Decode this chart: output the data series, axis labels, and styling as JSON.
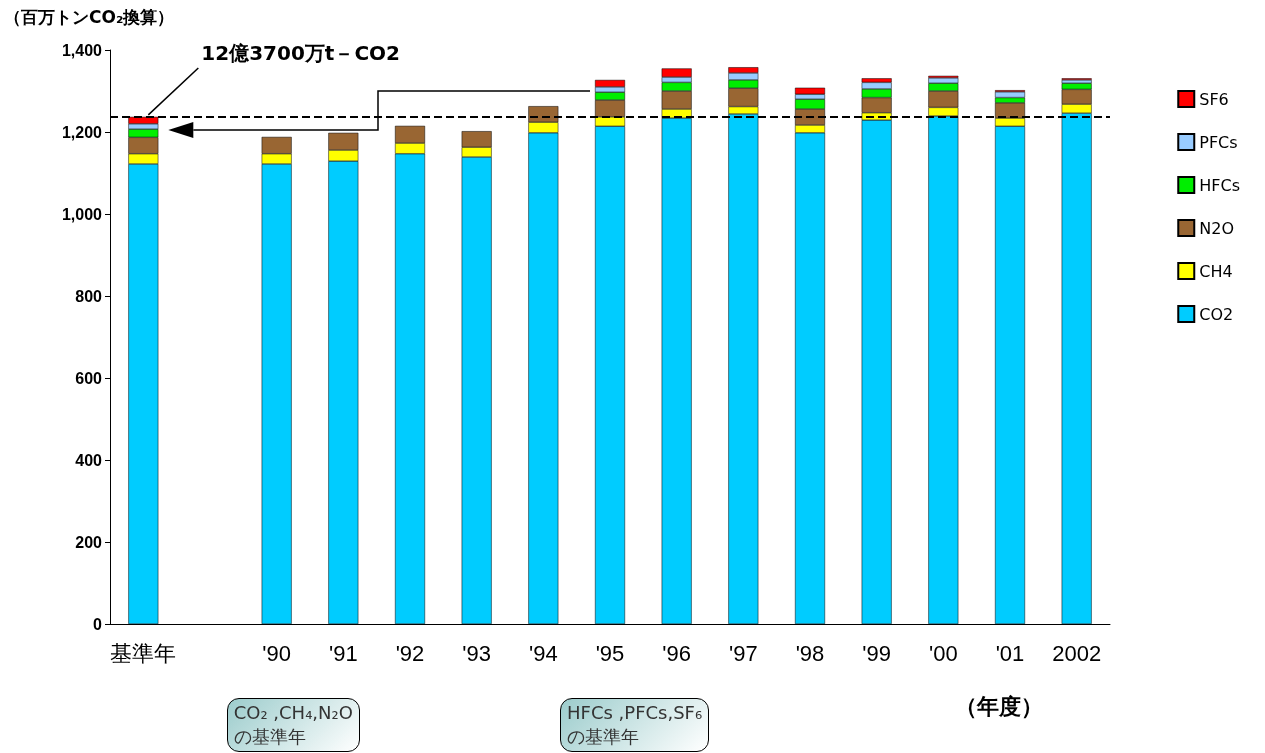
{
  "chart_data": {
    "type": "bar",
    "stacked": true,
    "ylabel": "（百万トンCO₂換算）",
    "xlabel": "（年度）",
    "categories": [
      "基準年",
      null,
      "'90",
      "'91",
      "'92",
      "'93",
      "'94",
      "'95",
      "'96",
      "'97",
      "'98",
      "'99",
      "'00",
      "'01",
      "2002"
    ],
    "series": [
      {
        "name": "CO2",
        "color": "#00ccff",
        "values": [
          1122,
          null,
          1122,
          1129,
          1147,
          1139,
          1198,
          1214,
          1234,
          1244,
          1198,
          1229,
          1239,
          1214,
          1246
        ]
      },
      {
        "name": "CH4",
        "color": "#ffff00",
        "values": [
          25,
          null,
          25,
          27,
          26,
          24,
          26,
          23,
          22,
          18,
          19,
          18,
          21,
          20,
          22
        ]
      },
      {
        "name": "N2O",
        "color": "#996633",
        "values": [
          40,
          null,
          41,
          42,
          42,
          39,
          39,
          41,
          44,
          45,
          39,
          37,
          40,
          37,
          36
        ]
      },
      {
        "name": "HFCs",
        "color": "#00ee00",
        "values": [
          20,
          null,
          null,
          null,
          null,
          null,
          null,
          19,
          21,
          20,
          24,
          21,
          19,
          13,
          15
        ]
      },
      {
        "name": "PFCs",
        "color": "#99ccff",
        "values": [
          13,
          null,
          null,
          null,
          null,
          null,
          null,
          13,
          13,
          17,
          12,
          16,
          13,
          14,
          8
        ]
      },
      {
        "name": "SF6",
        "color": "#ff0000",
        "values": [
          17,
          null,
          null,
          null,
          null,
          null,
          null,
          17,
          21,
          14,
          16,
          10,
          5,
          4,
          4
        ]
      }
    ],
    "ylim": [
      0,
      1400
    ],
    "yticks": [
      0,
      200,
      400,
      600,
      800,
      {
        "value": 1000,
        "label": "1,000"
      },
      {
        "value": 1200,
        "label": "1,200"
      },
      {
        "value": 1400,
        "label": "1,400"
      }
    ],
    "grid": false,
    "legend": "right",
    "ref_lines": [
      {
        "axis": "y",
        "value": 1237,
        "line_style": "dashed",
        "color": "#000000"
      }
    ],
    "annotations": [
      {
        "text": "12億3700万t－CO2",
        "x": "基準年",
        "y": 1237
      },
      "CO₂ ,CH₄,N₂O\nの基準年",
      "HFCs ,PFCs,SF₆\nの基準年"
    ]
  }
}
